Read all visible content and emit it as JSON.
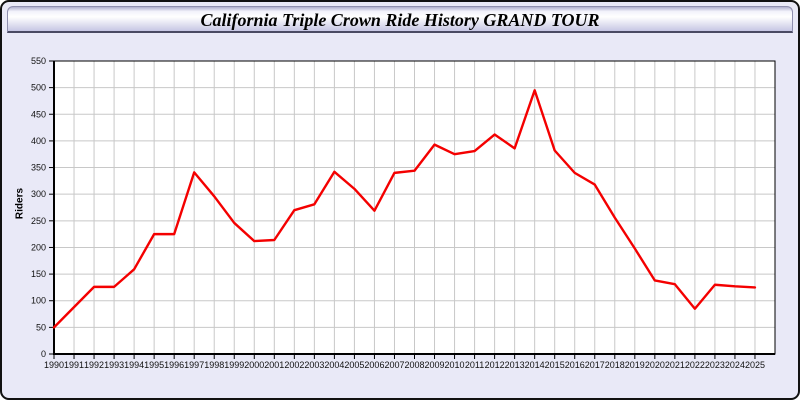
{
  "window": {
    "title": "California Triple Crown Ride History GRAND TOUR"
  },
  "chart_data": {
    "type": "line",
    "title": "California Triple Crown Ride History GRAND TOUR",
    "xlabel": "",
    "ylabel": "Riders",
    "x": [
      1990,
      1991,
      1992,
      1993,
      1994,
      1995,
      1996,
      1997,
      1998,
      1999,
      2000,
      2001,
      2002,
      2003,
      2004,
      2005,
      2006,
      2007,
      2008,
      2009,
      2010,
      2011,
      2012,
      2013,
      2014,
      2015,
      2016,
      2017,
      2018,
      2019,
      2020,
      2021,
      2022,
      2023,
      2024,
      2025
    ],
    "series": [
      {
        "name": "Riders",
        "color": "#f40000",
        "values": [
          50,
          88,
          126,
          126,
          159,
          225,
          225,
          341,
          296,
          246,
          212,
          214,
          270,
          281,
          342,
          310,
          269,
          340,
          344,
          393,
          375,
          381,
          412,
          386,
          495,
          382,
          340,
          318,
          256,
          198,
          138,
          131,
          85,
          130,
          127,
          125
        ]
      }
    ],
    "ylim": [
      0,
      550
    ],
    "yticks": [
      0,
      50,
      100,
      150,
      200,
      250,
      300,
      350,
      400,
      450,
      500,
      550
    ],
    "grid": true,
    "legend_position": "none",
    "plot_background": "#ffffff",
    "grid_color": "#c8c8c8",
    "axis_color": "#000000"
  }
}
